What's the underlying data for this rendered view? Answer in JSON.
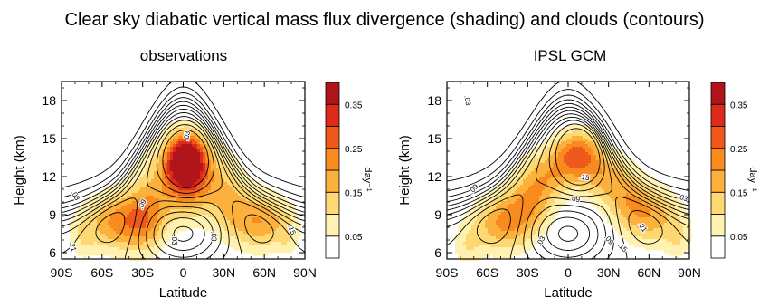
{
  "figure": {
    "title": "Clear sky diabatic vertical mass flux divergence (shading) and clouds (contours)"
  },
  "colorbar": {
    "levels": [
      0,
      0.05,
      0.1,
      0.15,
      0.2,
      0.25,
      0.3,
      0.35,
      0.4
    ],
    "colors": [
      "#ffffff",
      "#fff2b0",
      "#fdd873",
      "#fbb13c",
      "#f98a1d",
      "#f0591c",
      "#dd2a19",
      "#b0151a"
    ],
    "tick_labels": [
      "0.05",
      "0.15",
      "0.25",
      "0.35"
    ],
    "tick_values": [
      0.05,
      0.15,
      0.25,
      0.35
    ],
    "unit": "day⁻¹"
  },
  "chart_data": [
    {
      "type": "heatmap",
      "title": "observations",
      "xlabel": "Latitude",
      "ylabel": "Height (km)",
      "xlim": [
        -90,
        90
      ],
      "ylim": [
        5.5,
        19.5
      ],
      "x_ticks": [
        -90,
        -60,
        -30,
        0,
        30,
        60,
        90
      ],
      "x_tick_labels": [
        "90S",
        "60S",
        "30S",
        "0",
        "30N",
        "60N",
        "90N"
      ],
      "y_ticks": [
        6,
        9,
        12,
        15,
        18
      ],
      "y_tick_labels": [
        "6",
        "9",
        "12",
        "15",
        "18"
      ],
      "shading_blobs": [
        {
          "lat": 2,
          "z": 13.3,
          "sx": 9,
          "sz": 1.4,
          "value": 0.39
        },
        {
          "lat": -5,
          "z": 11.8,
          "sx": 20,
          "sz": 2.2,
          "value": 0.14
        },
        {
          "lat": 12,
          "z": 11.8,
          "sx": 18,
          "sz": 2.2,
          "value": 0.12
        },
        {
          "lat": -50,
          "z": 8.4,
          "sx": 16,
          "sz": 1.6,
          "value": 0.2
        },
        {
          "lat": -28,
          "z": 8.6,
          "sx": 11,
          "sz": 1.8,
          "value": 0.16
        },
        {
          "lat": 58,
          "z": 8.5,
          "sx": 14,
          "sz": 1.6,
          "value": 0.19
        },
        {
          "lat": 36,
          "z": 9.5,
          "sx": 10,
          "sz": 1.9,
          "value": 0.1
        },
        {
          "lat": -75,
          "z": 7.2,
          "sx": 7,
          "sz": 1.3,
          "value": 0.07
        },
        {
          "lat": 78,
          "z": 7.5,
          "sx": 6,
          "sz": 1.2,
          "value": 0.07
        }
      ],
      "contour_labels": [
        {
          "text": ".03",
          "lat": -80,
          "z": 10.5,
          "angle": 60
        },
        {
          "text": ".09",
          "lat": -30,
          "z": 9.8,
          "angle": -65
        },
        {
          "text": ".03",
          "lat": -7,
          "z": 7.0,
          "angle": 90
        },
        {
          "text": ".03",
          "lat": 3,
          "z": 15.2,
          "angle": -80
        },
        {
          "text": ".03",
          "lat": 22,
          "z": 7.3,
          "angle": 90
        },
        {
          "text": ".21",
          "lat": -82,
          "z": 6.5,
          "angle": 75
        },
        {
          "text": ".15",
          "lat": 80,
          "z": 7.8,
          "angle": 70
        }
      ]
    },
    {
      "type": "heatmap",
      "title": "IPSL GCM",
      "xlabel": "Latitude",
      "ylabel": "Height (km)",
      "xlim": [
        -90,
        90
      ],
      "ylim": [
        5.5,
        19.5
      ],
      "x_ticks": [
        -90,
        -60,
        -30,
        0,
        30,
        60,
        90
      ],
      "x_tick_labels": [
        "90S",
        "60S",
        "30S",
        "0",
        "30N",
        "60N",
        "90N"
      ],
      "y_ticks": [
        6,
        9,
        12,
        15,
        18
      ],
      "y_tick_labels": [
        "6",
        "9",
        "12",
        "15",
        "18"
      ],
      "shading_blobs": [
        {
          "lat": 7,
          "z": 13.8,
          "sx": 12,
          "sz": 1.3,
          "value": 0.25
        },
        {
          "lat": -15,
          "z": 12.2,
          "sx": 14,
          "sz": 1.4,
          "value": 0.15
        },
        {
          "lat": 28,
          "z": 12.0,
          "sx": 14,
          "sz": 1.4,
          "value": 0.15
        },
        {
          "lat": -48,
          "z": 8.3,
          "sx": 16,
          "sz": 1.6,
          "value": 0.2
        },
        {
          "lat": -28,
          "z": 10.0,
          "sx": 12,
          "sz": 1.5,
          "value": 0.15
        },
        {
          "lat": 62,
          "z": 8.8,
          "sx": 16,
          "sz": 1.6,
          "value": 0.17
        },
        {
          "lat": 45,
          "z": 10.2,
          "sx": 12,
          "sz": 1.4,
          "value": 0.11
        },
        {
          "lat": -75,
          "z": 6.5,
          "sx": 8,
          "sz": 1.2,
          "value": 0.08
        },
        {
          "lat": 82,
          "z": 7.0,
          "sx": 7,
          "sz": 1.2,
          "value": 0.07
        }
      ],
      "contour_labels": [
        {
          "text": ".03",
          "lat": -75,
          "z": 18.0,
          "angle": 80
        },
        {
          "text": ".09",
          "lat": -70,
          "z": 11.0,
          "angle": -50
        },
        {
          "text": ".15",
          "lat": 12,
          "z": 11.9,
          "angle": 10
        },
        {
          "text": ".09",
          "lat": 5,
          "z": 10.2,
          "angle": 10
        },
        {
          "text": ".03",
          "lat": -20,
          "z": 6.9,
          "angle": -60
        },
        {
          "text": ".03",
          "lat": 85,
          "z": 10.3,
          "angle": 20
        },
        {
          "text": ".21",
          "lat": 55,
          "z": 8.0,
          "angle": 55
        },
        {
          "text": ".15",
          "lat": 40,
          "z": 6.4,
          "angle": 45
        },
        {
          "text": ".09",
          "lat": 30,
          "z": 7.0,
          "angle": 50
        }
      ]
    }
  ]
}
